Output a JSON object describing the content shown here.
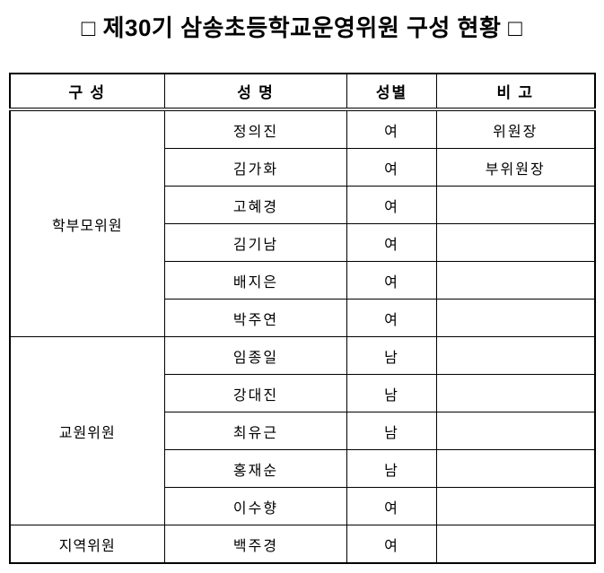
{
  "page": {
    "title": "□ 제30기 삼송초등학교운영위원 구성 현황 □"
  },
  "table": {
    "headers": {
      "group": "구 성",
      "name": "성 명",
      "gender": "성별",
      "note": "비 고"
    },
    "groups": [
      {
        "label": "학부모위원",
        "members": [
          {
            "name": "정의진",
            "gender": "여",
            "note": "위원장"
          },
          {
            "name": "김가화",
            "gender": "여",
            "note": "부위원장"
          },
          {
            "name": "고혜경",
            "gender": "여",
            "note": ""
          },
          {
            "name": "김기남",
            "gender": "여",
            "note": ""
          },
          {
            "name": "배지은",
            "gender": "여",
            "note": ""
          },
          {
            "name": "박주연",
            "gender": "여",
            "note": ""
          }
        ]
      },
      {
        "label": "교원위원",
        "members": [
          {
            "name": "임종일",
            "gender": "남",
            "note": ""
          },
          {
            "name": "강대진",
            "gender": "남",
            "note": ""
          },
          {
            "name": "최유근",
            "gender": "남",
            "note": ""
          },
          {
            "name": "홍재순",
            "gender": "남",
            "note": ""
          },
          {
            "name": "이수향",
            "gender": "여",
            "note": ""
          }
        ]
      },
      {
        "label": "지역위원",
        "members": [
          {
            "name": "백주경",
            "gender": "여",
            "note": ""
          }
        ]
      }
    ]
  }
}
